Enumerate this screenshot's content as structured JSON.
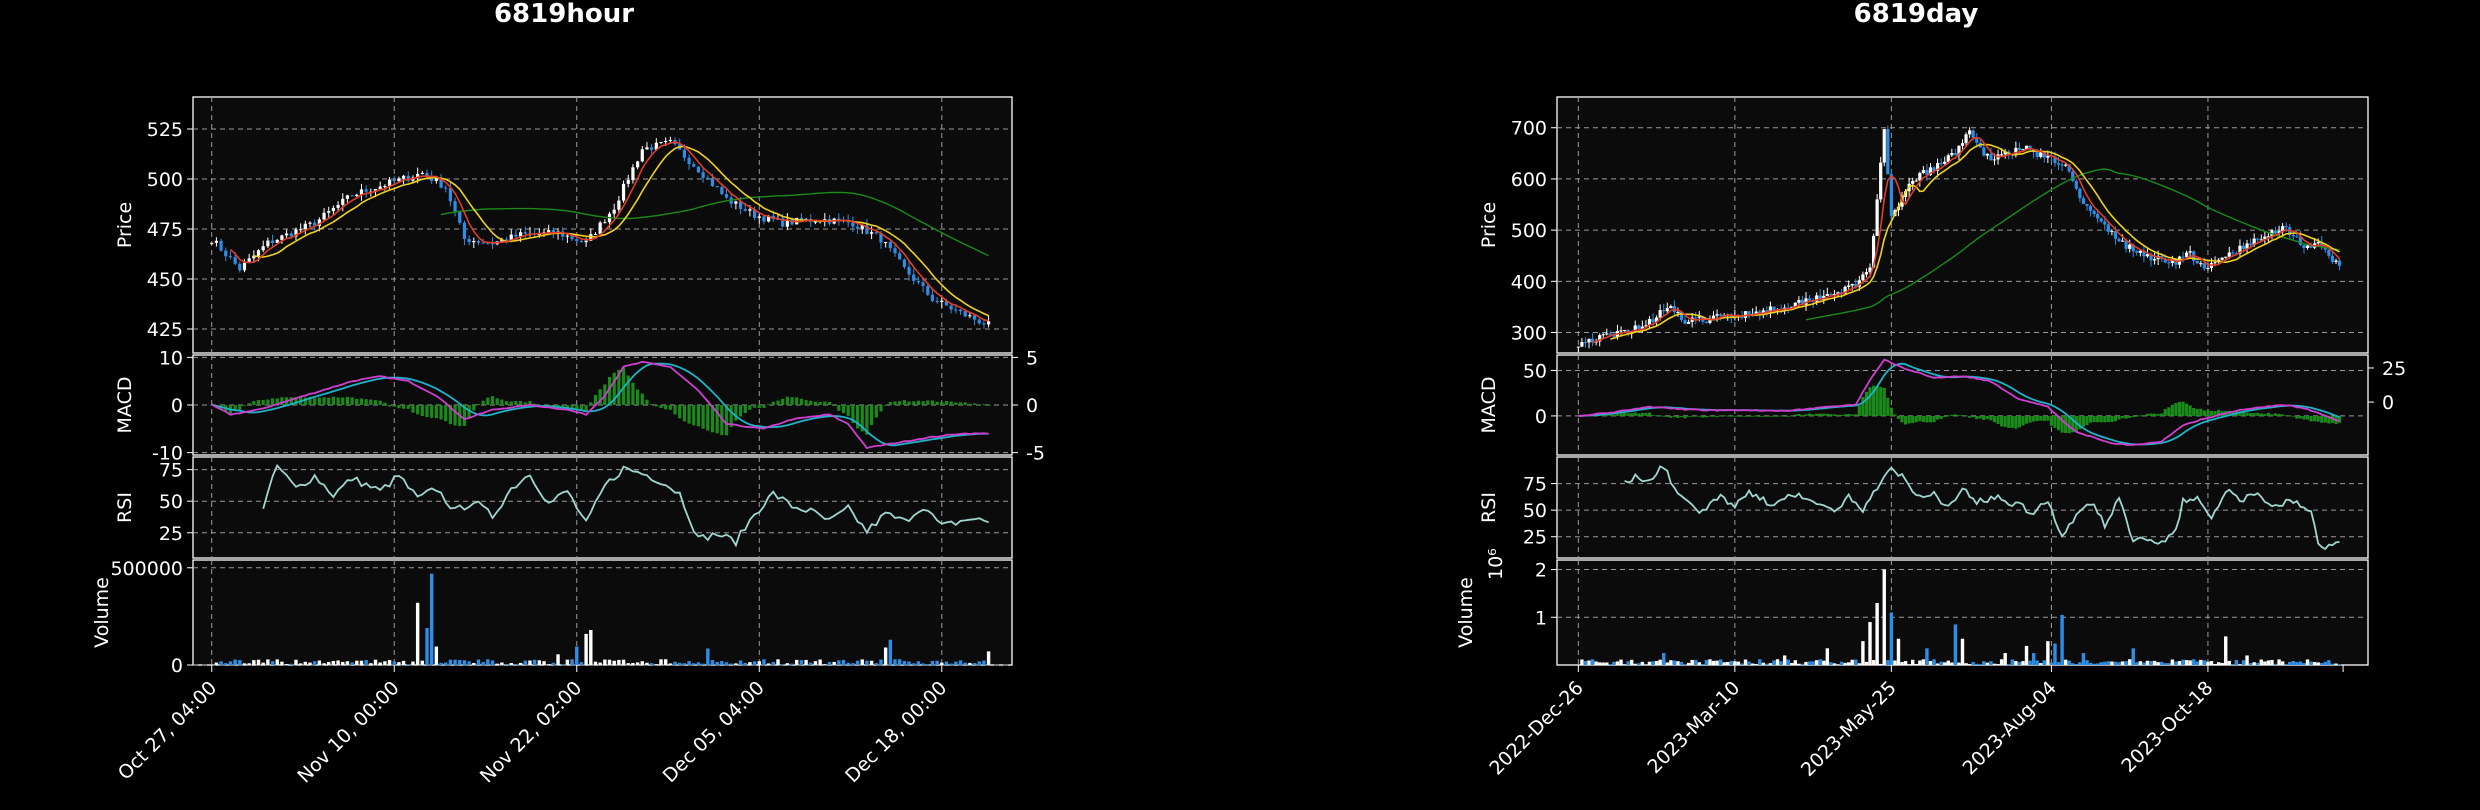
{
  "colors": {
    "background": "#000000",
    "panel": "#0b0b0b",
    "grid": "#9a9a9a",
    "up": "#ffffff",
    "down": "#2c8ee6",
    "ma_short": "#e03c28",
    "ma_mid": "#f0d21e",
    "ma_long": "#1a8a1a",
    "macd_line": "#cf3fcf",
    "signal_line": "#1fb3c9",
    "macd_hist": "#1a8a1a",
    "rsi_line": "#9fd6cf",
    "text": "#ffffff"
  },
  "chart_data": [
    {
      "type": "candlestick",
      "title": "6819hour",
      "x_tick_labels": [
        "Oct 27, 04:00",
        "Nov 10, 00:00",
        "Nov 22, 02:00",
        "Dec 05, 04:00",
        "Dec 18, 00:00"
      ],
      "panels": {
        "price": {
          "ylabel": "Price",
          "ylim": [
            413,
            541
          ],
          "yticks": [
            425,
            450,
            475,
            500,
            525
          ],
          "close_anchors": [
            [
              0,
              470
            ],
            [
              6,
              455
            ],
            [
              12,
              468
            ],
            [
              22,
              478
            ],
            [
              30,
              492
            ],
            [
              38,
              498
            ],
            [
              45,
              503
            ],
            [
              50,
              496
            ],
            [
              54,
              470
            ],
            [
              60,
              468
            ],
            [
              66,
              472
            ],
            [
              74,
              473
            ],
            [
              80,
              468
            ],
            [
              86,
              486
            ],
            [
              92,
              515
            ],
            [
              98,
              518
            ],
            [
              104,
              505
            ],
            [
              110,
              490
            ],
            [
              116,
              482
            ],
            [
              122,
              478
            ],
            [
              130,
              480
            ],
            [
              137,
              478
            ],
            [
              143,
              470
            ],
            [
              148,
              455
            ],
            [
              154,
              440
            ],
            [
              160,
              433
            ],
            [
              166,
              427
            ]
          ],
          "ma_series": [
            "short",
            "mid",
            "long"
          ]
        },
        "macd": {
          "ylabel": "MACD",
          "ylim": [
            -10.5,
            10.5
          ],
          "yticks": [
            -10,
            0,
            10
          ],
          "right_yticks": [
            -5,
            0,
            5
          ],
          "macd_anchors": [
            [
              0,
              0
            ],
            [
              4,
              -2
            ],
            [
              10,
              -1
            ],
            [
              20,
              2
            ],
            [
              30,
              5
            ],
            [
              36,
              6
            ],
            [
              42,
              5
            ],
            [
              48,
              2
            ],
            [
              54,
              -3
            ],
            [
              60,
              -1
            ],
            [
              68,
              0
            ],
            [
              76,
              -1
            ],
            [
              80,
              -2
            ],
            [
              84,
              2
            ],
            [
              88,
              8
            ],
            [
              92,
              9
            ],
            [
              98,
              8
            ],
            [
              104,
              3
            ],
            [
              110,
              -4
            ],
            [
              118,
              -5
            ],
            [
              124,
              -3
            ],
            [
              132,
              -2
            ],
            [
              136,
              -4
            ],
            [
              140,
              -9
            ],
            [
              146,
              -8
            ],
            [
              152,
              -7
            ],
            [
              160,
              -6
            ],
            [
              166,
              -6
            ]
          ]
        },
        "rsi": {
          "ylabel": "RSI",
          "ylim": [
            5,
            85
          ],
          "yticks": [
            25,
            50,
            75
          ],
          "start_index": 11,
          "rsi_anchors": [
            [
              11,
              45
            ],
            [
              14,
              78
            ],
            [
              18,
              60
            ],
            [
              22,
              70
            ],
            [
              26,
              55
            ],
            [
              30,
              68
            ],
            [
              36,
              58
            ],
            [
              40,
              70
            ],
            [
              44,
              52
            ],
            [
              48,
              60
            ],
            [
              52,
              42
            ],
            [
              56,
              50
            ],
            [
              60,
              38
            ],
            [
              64,
              60
            ],
            [
              68,
              72
            ],
            [
              72,
              48
            ],
            [
              76,
              58
            ],
            [
              80,
              32
            ],
            [
              84,
              62
            ],
            [
              88,
              76
            ],
            [
              92,
              72
            ],
            [
              96,
              66
            ],
            [
              100,
              56
            ],
            [
              104,
              20
            ],
            [
              108,
              24
            ],
            [
              112,
              18
            ],
            [
              116,
              40
            ],
            [
              120,
              56
            ],
            [
              124,
              46
            ],
            [
              128,
              42
            ],
            [
              132,
              34
            ],
            [
              136,
              44
            ],
            [
              140,
              26
            ],
            [
              144,
              40
            ],
            [
              148,
              34
            ],
            [
              152,
              46
            ],
            [
              156,
              30
            ],
            [
              162,
              36
            ],
            [
              166,
              34
            ]
          ]
        },
        "volume": {
          "ylabel": "Volume",
          "ylim": [
            0,
            540000
          ],
          "yticks": [
            0,
            500000
          ],
          "ytick_labels": [
            "0",
            "500000"
          ],
          "spikes": [
            [
              44,
              320000
            ],
            [
              46,
              190000
            ],
            [
              47,
              470000
            ],
            [
              48,
              95000
            ],
            [
              74,
              55000
            ],
            [
              78,
              95000
            ],
            [
              80,
              160000
            ],
            [
              81,
              180000
            ],
            [
              106,
              85000
            ],
            [
              144,
              90000
            ],
            [
              145,
              130000
            ],
            [
              166,
              70000
            ]
          ]
        }
      },
      "x_count": 167,
      "grid": true,
      "seed": 7
    },
    {
      "type": "candlestick",
      "title": "6819day",
      "x_tick_labels": [
        "2022-Dec-26",
        "2023-Mar-10",
        "2023-May-25",
        "2023-Aug-04",
        "2023-Oct-18"
      ],
      "panels": {
        "price": {
          "ylabel": "Price",
          "ylim": [
            260,
            760
          ],
          "yticks": [
            300,
            400,
            500,
            600,
            700
          ],
          "close_anchors": [
            [
              0,
              280
            ],
            [
              10,
              295
            ],
            [
              20,
              320
            ],
            [
              25,
              355
            ],
            [
              30,
              320
            ],
            [
              40,
              330
            ],
            [
              50,
              340
            ],
            [
              60,
              355
            ],
            [
              70,
              375
            ],
            [
              78,
              390
            ],
            [
              82,
              430
            ],
            [
              84,
              560
            ],
            [
              86,
              690
            ],
            [
              88,
              520
            ],
            [
              94,
              600
            ],
            [
              100,
              620
            ],
            [
              106,
              650
            ],
            [
              110,
              700
            ],
            [
              114,
              640
            ],
            [
              120,
              650
            ],
            [
              126,
              660
            ],
            [
              132,
              640
            ],
            [
              138,
              620
            ],
            [
              142,
              550
            ],
            [
              146,
              520
            ],
            [
              152,
              480
            ],
            [
              156,
              460
            ],
            [
              162,
              445
            ],
            [
              168,
              440
            ],
            [
              172,
              455
            ],
            [
              176,
              420
            ],
            [
              182,
              450
            ],
            [
              188,
              470
            ],
            [
              194,
              490
            ],
            [
              198,
              510
            ],
            [
              204,
              470
            ],
            [
              208,
              470
            ],
            [
              212,
              440
            ],
            [
              214,
              430
            ]
          ],
          "ma_series": [
            "short",
            "mid",
            "long"
          ]
        },
        "macd": {
          "ylabel": "MACD",
          "ylim": [
            -43,
            67
          ],
          "yticks": [
            0,
            50
          ],
          "right_yticks": [
            0,
            25
          ],
          "macd_anchors": [
            [
              0,
              0
            ],
            [
              10,
              4
            ],
            [
              20,
              10
            ],
            [
              30,
              7
            ],
            [
              40,
              6
            ],
            [
              50,
              6
            ],
            [
              60,
              6
            ],
            [
              70,
              10
            ],
            [
              78,
              12
            ],
            [
              82,
              40
            ],
            [
              86,
              62
            ],
            [
              92,
              52
            ],
            [
              100,
              42
            ],
            [
              108,
              44
            ],
            [
              116,
              38
            ],
            [
              124,
              18
            ],
            [
              132,
              10
            ],
            [
              136,
              -5
            ],
            [
              140,
              -18
            ],
            [
              146,
              -25
            ],
            [
              150,
              -30
            ],
            [
              156,
              -32
            ],
            [
              164,
              -28
            ],
            [
              170,
              -10
            ],
            [
              176,
              -3
            ],
            [
              184,
              5
            ],
            [
              192,
              10
            ],
            [
              200,
              12
            ],
            [
              206,
              6
            ],
            [
              214,
              -6
            ]
          ]
        },
        "rsi": {
          "ylabel": "RSI",
          "ylim": [
            5,
            100
          ],
          "yticks": [
            25,
            50,
            75
          ],
          "start_index": 13,
          "rsi_anchors": [
            [
              13,
              75
            ],
            [
              16,
              82
            ],
            [
              20,
              78
            ],
            [
              24,
              92
            ],
            [
              27,
              70
            ],
            [
              30,
              60
            ],
            [
              34,
              48
            ],
            [
              40,
              62
            ],
            [
              44,
              55
            ],
            [
              48,
              68
            ],
            [
              54,
              55
            ],
            [
              60,
              66
            ],
            [
              66,
              58
            ],
            [
              72,
              48
            ],
            [
              76,
              62
            ],
            [
              80,
              50
            ],
            [
              84,
              72
            ],
            [
              88,
              92
            ],
            [
              92,
              78
            ],
            [
              96,
              62
            ],
            [
              100,
              66
            ],
            [
              104,
              52
            ],
            [
              108,
              70
            ],
            [
              112,
              58
            ],
            [
              118,
              62
            ],
            [
              124,
              54
            ],
            [
              128,
              48
            ],
            [
              132,
              58
            ],
            [
              136,
              24
            ],
            [
              140,
              45
            ],
            [
              144,
              58
            ],
            [
              148,
              36
            ],
            [
              152,
              62
            ],
            [
              156,
              22
            ],
            [
              160,
              24
            ],
            [
              164,
              20
            ],
            [
              168,
              32
            ],
            [
              170,
              58
            ],
            [
              174,
              62
            ],
            [
              178,
              40
            ],
            [
              182,
              70
            ],
            [
              186,
              58
            ],
            [
              190,
              66
            ],
            [
              196,
              52
            ],
            [
              200,
              60
            ],
            [
              206,
              48
            ],
            [
              208,
              18
            ],
            [
              210,
              15
            ],
            [
              214,
              22
            ]
          ]
        },
        "volume": {
          "ylabel": "Volume",
          "multiplier_label": "10⁶",
          "ylim": [
            0,
            2.2
          ],
          "yticks": [
            1,
            2
          ],
          "ytick_labels": [
            "1",
            "2"
          ],
          "spikes": [
            [
              24,
              0.25
            ],
            [
              58,
              0.2
            ],
            [
              70,
              0.35
            ],
            [
              80,
              0.5
            ],
            [
              82,
              0.9
            ],
            [
              84,
              1.3
            ],
            [
              86,
              2.0
            ],
            [
              88,
              1.1
            ],
            [
              90,
              0.55
            ],
            [
              98,
              0.35
            ],
            [
              106,
              0.85
            ],
            [
              108,
              0.55
            ],
            [
              120,
              0.25
            ],
            [
              126,
              0.4
            ],
            [
              128,
              0.25
            ],
            [
              132,
              0.5
            ],
            [
              134,
              0.45
            ],
            [
              136,
              1.05
            ],
            [
              142,
              0.25
            ],
            [
              156,
              0.35
            ],
            [
              182,
              0.6
            ],
            [
              188,
              0.2
            ]
          ]
        }
      },
      "x_count": 215,
      "grid": true,
      "seed": 19
    }
  ]
}
